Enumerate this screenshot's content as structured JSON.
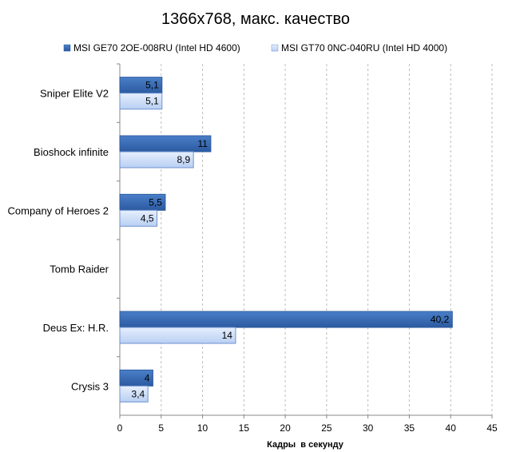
{
  "chart_data": {
    "type": "bar",
    "orientation": "horizontal",
    "title": "1366x768, макс. качество",
    "xlabel": "Кадры  в секунду",
    "ylabel": "",
    "xlim": [
      0,
      45
    ],
    "x_ticks": [
      "0",
      "5",
      "10",
      "15",
      "20",
      "25",
      "30",
      "35",
      "40",
      "45"
    ],
    "grid": "vertical dashed",
    "legend_position": "top",
    "categories": [
      "Sniper Elite V2",
      "Bioshock infinite",
      "Company of Heroes 2",
      "Tomb Raider",
      "Deus Ex: H.R.",
      "Crysis 3"
    ],
    "series": [
      {
        "name": "MSI GE70 2OE-008RU (Intel HD 4600)",
        "color": "#3a6db5",
        "values": [
          5.1,
          11,
          5.5,
          null,
          40.2,
          4
        ],
        "labels": [
          "5,1",
          "11",
          "5,5",
          "",
          "40,2",
          "4"
        ]
      },
      {
        "name": "MSI GT70 0NC-040RU (Intel HD 4000)",
        "color": "#cfe0fb",
        "values": [
          5.1,
          8.9,
          4.5,
          null,
          14,
          3.4
        ],
        "labels": [
          "5,1",
          "8,9",
          "4,5",
          "",
          "14",
          "3,4"
        ]
      }
    ]
  }
}
